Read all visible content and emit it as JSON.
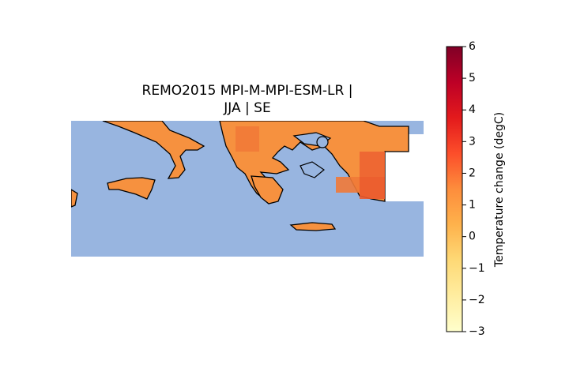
{
  "map": {
    "title": [
      "REMO2015 MPI-M-MPI-ESM-LR |",
      "JJA | SE"
    ],
    "colorbar": {
      "label": "Temperature change (degC)",
      "range": [
        -3,
        6
      ],
      "ticks": [
        {
          "value": -3,
          "label": "−3"
        },
        {
          "value": -2,
          "label": "−2"
        },
        {
          "value": -1,
          "label": "−1"
        },
        0,
        1,
        2,
        3,
        4,
        5,
        6
      ]
    }
  }
}
